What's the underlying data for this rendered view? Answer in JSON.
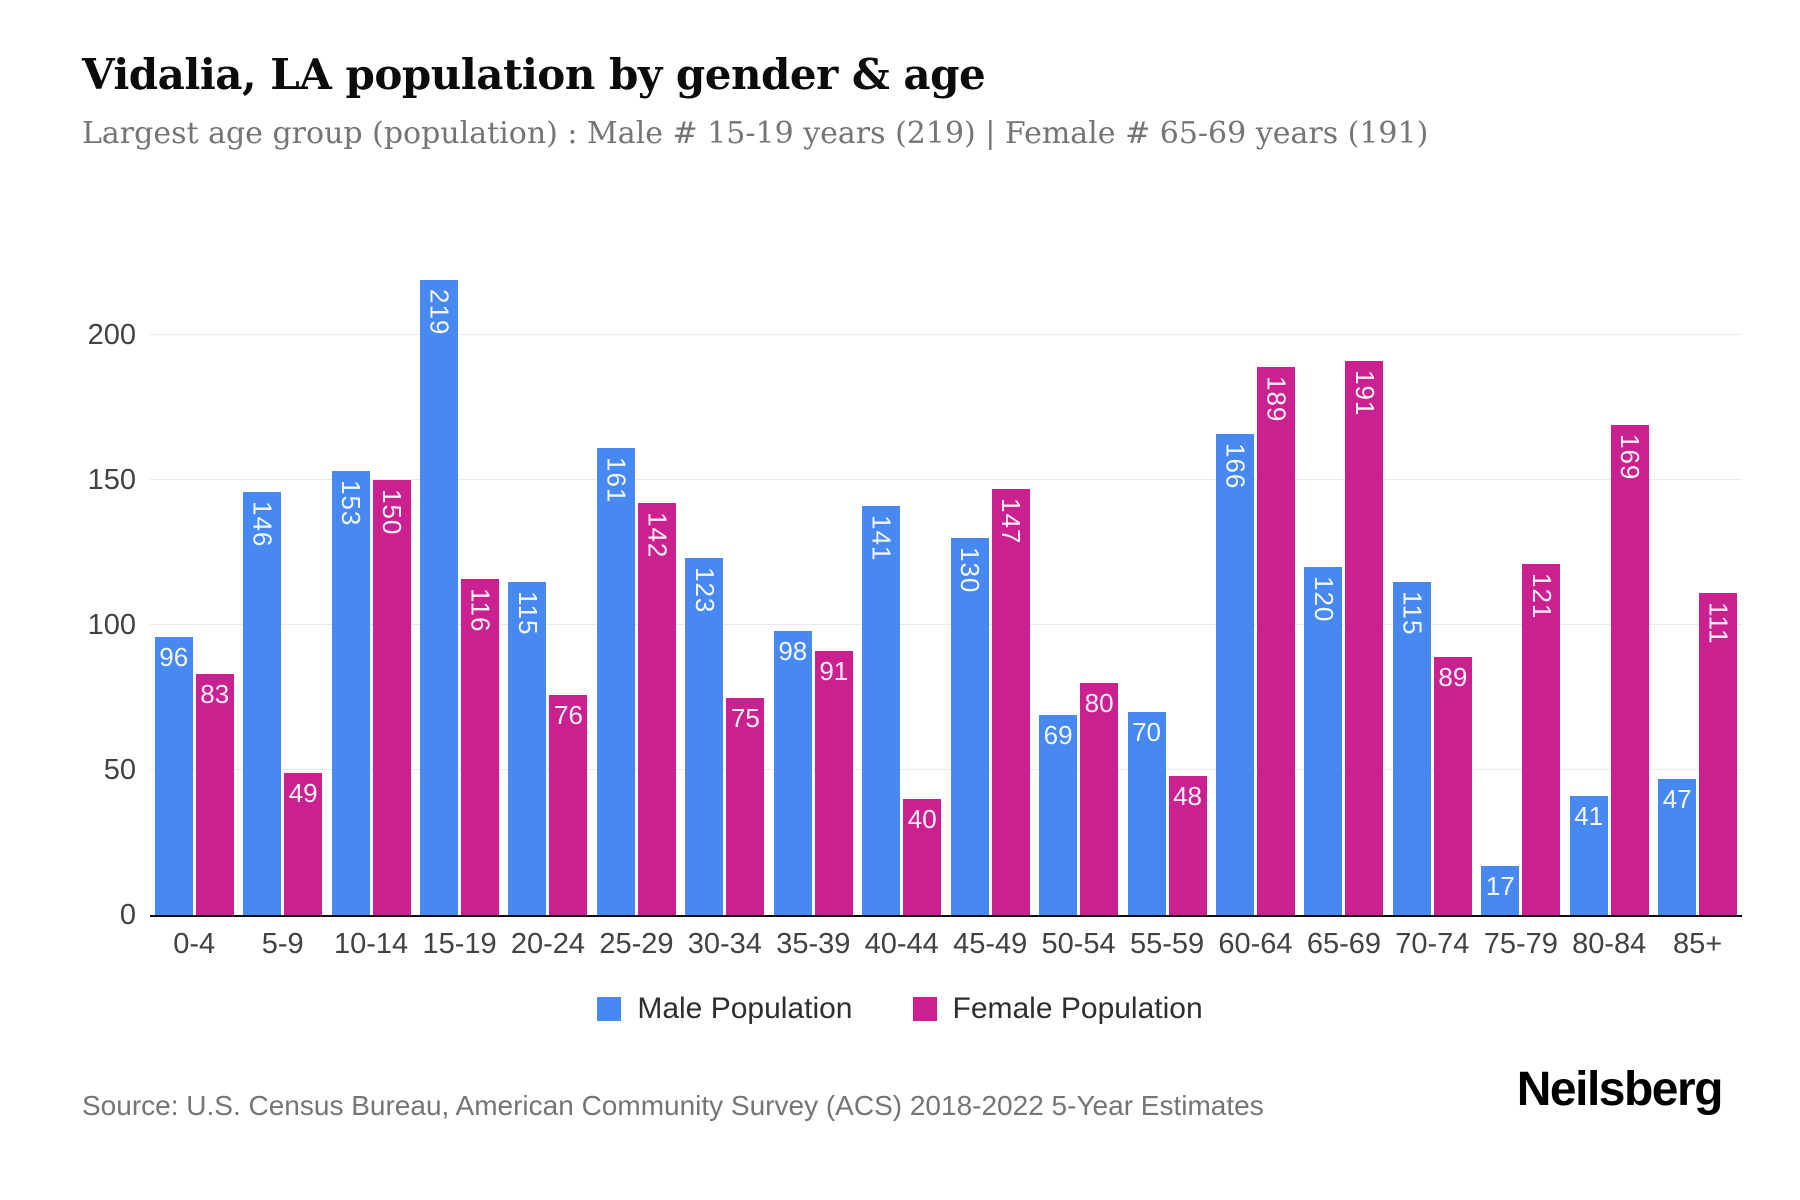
{
  "header": {
    "title": "Vidalia, LA population by gender & age",
    "subtitle": "Largest age group (population) : Male # 15-19 years (219) | Female # 65-69 years (191)"
  },
  "chart_data": {
    "type": "bar",
    "title": "Vidalia, LA population by gender & age",
    "categories": [
      "0-4",
      "5-9",
      "10-14",
      "15-19",
      "20-24",
      "25-29",
      "30-34",
      "35-39",
      "40-44",
      "45-49",
      "50-54",
      "55-59",
      "60-64",
      "65-69",
      "70-74",
      "75-79",
      "80-84",
      "85+"
    ],
    "series": [
      {
        "name": "Male Population",
        "color": "#4788f1",
        "values": [
          96,
          146,
          153,
          219,
          115,
          161,
          123,
          98,
          141,
          130,
          69,
          70,
          166,
          120,
          115,
          17,
          41,
          47
        ]
      },
      {
        "name": "Female Population",
        "color": "#cb2190",
        "values": [
          83,
          49,
          150,
          116,
          76,
          142,
          75,
          91,
          40,
          147,
          80,
          48,
          189,
          191,
          89,
          121,
          169,
          111
        ]
      }
    ],
    "xlabel": "",
    "ylabel": "",
    "yticks": [
      0,
      50,
      100,
      150,
      200
    ],
    "ylim": [
      0,
      226
    ],
    "grid": true,
    "legend_position": "bottom",
    "bar_label_color": "#ffffff",
    "axis_label_color": "#424242",
    "gridline_color": "#ebebeb"
  },
  "footer": {
    "source": "Source: U.S. Census Bureau, American Community Survey (ACS) 2018-2022 5-Year Estimates",
    "brand": "Neilsberg"
  }
}
